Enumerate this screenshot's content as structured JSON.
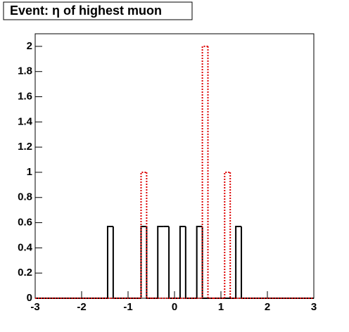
{
  "chart_data": {
    "type": "histogram",
    "title": "Event: η of highest muon",
    "bins": [
      -3,
      -2.88,
      -2.76,
      -2.64,
      -2.52,
      -2.4,
      -2.28,
      -2.16,
      -2.04,
      -1.92,
      -1.8,
      -1.68,
      -1.56,
      -1.44,
      -1.32,
      -1.2,
      -1.08,
      -0.96,
      -0.84,
      -0.72,
      -0.6,
      -0.48,
      -0.36,
      -0.24,
      -0.12,
      0,
      0.12,
      0.24,
      0.36,
      0.48,
      0.6,
      0.72,
      0.84,
      0.96,
      1.08,
      1.2,
      1.32,
      1.44,
      1.56,
      1.68,
      1.8,
      1.92,
      2.04,
      2.16,
      2.28,
      2.4,
      2.52,
      2.64,
      2.76,
      2.88,
      3
    ],
    "series": [
      {
        "color": "#000000",
        "linestyle": "solid",
        "values": [
          0,
          0,
          0,
          0,
          0,
          0,
          0,
          0,
          0,
          0,
          0,
          0,
          0,
          0.57,
          0,
          0,
          0,
          0,
          0,
          0.57,
          0,
          0,
          0.57,
          0.57,
          0,
          0,
          0.57,
          0,
          0,
          0.57,
          0,
          0,
          0,
          0,
          0,
          0,
          0.57,
          0,
          0,
          0,
          0,
          0,
          0,
          0,
          0,
          0,
          0,
          0,
          0,
          0
        ]
      },
      {
        "color": "#dd0000",
        "linestyle": "dotted",
        "values": [
          0,
          0,
          0,
          0,
          0,
          0,
          0,
          0,
          0,
          0,
          0,
          0,
          0,
          0,
          0,
          0,
          0,
          0,
          0,
          1,
          0,
          0,
          0,
          0,
          0,
          0,
          0,
          0,
          0,
          0,
          2,
          0,
          0,
          0,
          1,
          0,
          0,
          0,
          0,
          0,
          0,
          0,
          0,
          0,
          0,
          0,
          0,
          0,
          0,
          0
        ]
      }
    ],
    "xlim": [
      -3,
      3
    ],
    "ylim": [
      0,
      2.1
    ],
    "xticks": [
      -3,
      -2,
      -1,
      0,
      1,
      2,
      3
    ],
    "yticks": [
      0,
      0.2,
      0.4,
      0.6,
      0.8,
      1,
      1.2,
      1.4,
      1.6,
      1.8,
      2
    ]
  }
}
